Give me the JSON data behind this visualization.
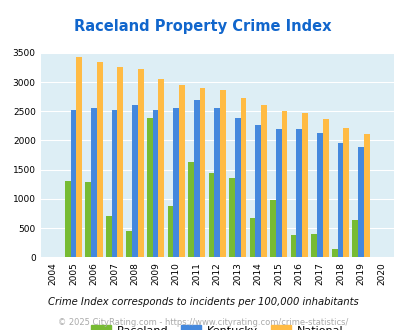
{
  "title": "Raceland Property Crime Index",
  "years": [
    2004,
    2005,
    2006,
    2007,
    2008,
    2009,
    2010,
    2011,
    2012,
    2013,
    2014,
    2015,
    2016,
    2017,
    2018,
    2019,
    2020
  ],
  "raceland": [
    0,
    1300,
    1290,
    700,
    450,
    2380,
    880,
    1630,
    1450,
    1350,
    670,
    990,
    390,
    400,
    150,
    640,
    0
  ],
  "kentucky": [
    0,
    2530,
    2560,
    2530,
    2600,
    2530,
    2550,
    2700,
    2550,
    2380,
    2260,
    2190,
    2200,
    2130,
    1960,
    1890,
    0
  ],
  "national": [
    0,
    3420,
    3340,
    3260,
    3220,
    3050,
    2950,
    2900,
    2870,
    2730,
    2600,
    2500,
    2470,
    2360,
    2210,
    2110,
    0
  ],
  "raceland_color": "#77bb33",
  "kentucky_color": "#4488dd",
  "national_color": "#ffbb44",
  "bg_color": "#ddeef5",
  "ylim": [
    0,
    3500
  ],
  "yticks": [
    0,
    500,
    1000,
    1500,
    2000,
    2500,
    3000,
    3500
  ],
  "subtitle": "Crime Index corresponds to incidents per 100,000 inhabitants",
  "footer": "© 2025 CityRating.com - https://www.cityrating.com/crime-statistics/",
  "title_color": "#1166cc",
  "subtitle_color": "#111111",
  "footer_color": "#aaaaaa"
}
